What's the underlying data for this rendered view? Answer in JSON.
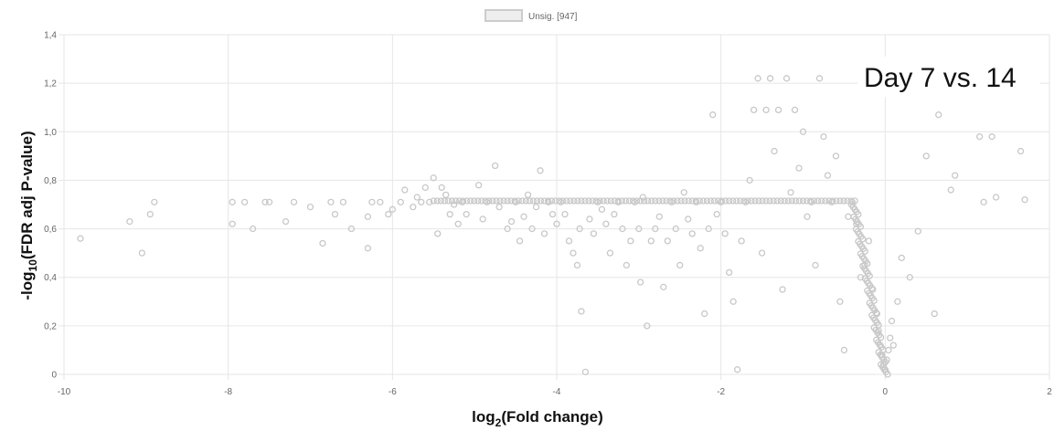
{
  "chart_data": {
    "type": "scatter",
    "legend": {
      "label": "Unsig. [947]",
      "position": "top-center"
    },
    "annotation": "Day 7 vs. 14",
    "xlabel": {
      "base": "log",
      "sub": "2",
      "rest": "(Fold change)"
    },
    "ylabel": {
      "pre": "-log",
      "sub": "10",
      "rest": "(FDR adj P-value)"
    },
    "xlim": [
      -10,
      2
    ],
    "ylim": [
      0,
      1.4
    ],
    "x_ticks": [
      "-10",
      "-8",
      "-6",
      "-4",
      "-2",
      "0",
      "2"
    ],
    "y_ticks": [
      "0",
      "0,2",
      "0,4",
      "0,6",
      "0,8",
      "1,0",
      "1,2",
      "1,4"
    ],
    "grid": true,
    "series": [
      {
        "name": "Unsig. [947]",
        "points": [
          [
            -9.8,
            0.56
          ],
          [
            -9.2,
            0.63
          ],
          [
            -9.05,
            0.5
          ],
          [
            -8.95,
            0.66
          ],
          [
            -8.9,
            0.71
          ],
          [
            -7.95,
            0.62
          ],
          [
            -7.95,
            0.71
          ],
          [
            -7.8,
            0.71
          ],
          [
            -7.7,
            0.6
          ],
          [
            -7.55,
            0.71
          ],
          [
            -7.5,
            0.71
          ],
          [
            -7.3,
            0.63
          ],
          [
            -7.2,
            0.71
          ],
          [
            -7.0,
            0.69
          ],
          [
            -6.85,
            0.54
          ],
          [
            -6.75,
            0.71
          ],
          [
            -6.7,
            0.66
          ],
          [
            -6.6,
            0.71
          ],
          [
            -6.5,
            0.6
          ],
          [
            -6.3,
            0.52
          ],
          [
            -6.3,
            0.65
          ],
          [
            -6.25,
            0.71
          ],
          [
            -6.15,
            0.71
          ],
          [
            -6.05,
            0.66
          ],
          [
            -6.0,
            0.68
          ],
          [
            -5.9,
            0.71
          ],
          [
            -5.85,
            0.76
          ],
          [
            -5.75,
            0.69
          ],
          [
            -5.7,
            0.73
          ],
          [
            -5.65,
            0.71
          ],
          [
            -5.6,
            0.77
          ],
          [
            -5.55,
            0.71
          ],
          [
            -5.5,
            0.81
          ],
          [
            -5.45,
            0.58
          ],
          [
            -5.4,
            0.77
          ],
          [
            -5.35,
            0.74
          ],
          [
            -5.3,
            0.66
          ],
          [
            -5.25,
            0.7
          ],
          [
            -5.2,
            0.62
          ],
          [
            -5.15,
            0.71
          ],
          [
            -5.1,
            0.66
          ],
          [
            -4.95,
            0.78
          ],
          [
            -4.9,
            0.64
          ],
          [
            -4.85,
            0.71
          ],
          [
            -4.75,
            0.86
          ],
          [
            -4.7,
            0.69
          ],
          [
            -4.6,
            0.6
          ],
          [
            -4.55,
            0.63
          ],
          [
            -4.5,
            0.71
          ],
          [
            -4.45,
            0.55
          ],
          [
            -4.4,
            0.65
          ],
          [
            -4.35,
            0.74
          ],
          [
            -4.3,
            0.6
          ],
          [
            -4.25,
            0.69
          ],
          [
            -4.2,
            0.84
          ],
          [
            -4.15,
            0.58
          ],
          [
            -4.1,
            0.71
          ],
          [
            -4.05,
            0.66
          ],
          [
            -4.0,
            0.62
          ],
          [
            -3.95,
            0.71
          ],
          [
            -3.9,
            0.66
          ],
          [
            -3.85,
            0.55
          ],
          [
            -3.8,
            0.5
          ],
          [
            -3.75,
            0.45
          ],
          [
            -3.72,
            0.6
          ],
          [
            -3.7,
            0.26
          ],
          [
            -3.65,
            0.01
          ],
          [
            -3.6,
            0.64
          ],
          [
            -3.55,
            0.58
          ],
          [
            -3.5,
            0.71
          ],
          [
            -3.45,
            0.68
          ],
          [
            -3.4,
            0.62
          ],
          [
            -3.35,
            0.5
          ],
          [
            -3.3,
            0.66
          ],
          [
            -3.25,
            0.71
          ],
          [
            -3.2,
            0.6
          ],
          [
            -3.15,
            0.45
          ],
          [
            -3.1,
            0.55
          ],
          [
            -3.05,
            0.71
          ],
          [
            -3.0,
            0.6
          ],
          [
            -2.98,
            0.38
          ],
          [
            -2.95,
            0.73
          ],
          [
            -2.9,
            0.2
          ],
          [
            -2.85,
            0.55
          ],
          [
            -2.8,
            0.6
          ],
          [
            -2.75,
            0.65
          ],
          [
            -2.7,
            0.36
          ],
          [
            -2.65,
            0.55
          ],
          [
            -2.6,
            0.71
          ],
          [
            -2.55,
            0.6
          ],
          [
            -2.5,
            0.45
          ],
          [
            -2.45,
            0.75
          ],
          [
            -2.4,
            0.64
          ],
          [
            -2.35,
            0.58
          ],
          [
            -2.3,
            0.71
          ],
          [
            -2.25,
            0.52
          ],
          [
            -2.2,
            0.25
          ],
          [
            -2.15,
            0.6
          ],
          [
            -2.1,
            1.07
          ],
          [
            -2.05,
            0.66
          ],
          [
            -2.0,
            0.71
          ],
          [
            -1.95,
            0.58
          ],
          [
            -1.9,
            0.42
          ],
          [
            -1.85,
            0.3
          ],
          [
            -1.8,
            0.02
          ],
          [
            -1.75,
            0.55
          ],
          [
            -1.7,
            0.71
          ],
          [
            -1.65,
            0.8
          ],
          [
            -1.6,
            1.09
          ],
          [
            -1.55,
            1.22
          ],
          [
            -1.5,
            0.5
          ],
          [
            -1.45,
            1.09
          ],
          [
            -1.4,
            1.22
          ],
          [
            -1.35,
            0.92
          ],
          [
            -1.3,
            1.09
          ],
          [
            -1.25,
            0.35
          ],
          [
            -1.2,
            1.22
          ],
          [
            -1.15,
            0.75
          ],
          [
            -1.1,
            1.09
          ],
          [
            -1.05,
            0.85
          ],
          [
            -1.0,
            1.0
          ],
          [
            -0.95,
            0.65
          ],
          [
            -0.9,
            0.71
          ],
          [
            -0.85,
            0.45
          ],
          [
            -0.8,
            1.22
          ],
          [
            -0.75,
            0.98
          ],
          [
            -0.7,
            0.82
          ],
          [
            -0.65,
            0.71
          ],
          [
            -0.6,
            0.9
          ],
          [
            -0.55,
            0.3
          ],
          [
            -0.5,
            0.1
          ],
          [
            -0.45,
            0.65
          ],
          [
            -0.4,
            0.71
          ],
          [
            -0.35,
            0.62
          ],
          [
            -0.3,
            0.4
          ],
          [
            -0.25,
            0.45
          ],
          [
            -0.2,
            0.55
          ],
          [
            -0.15,
            0.35
          ],
          [
            -0.1,
            0.25
          ],
          [
            -0.08,
            0.18
          ],
          [
            -0.06,
            0.12
          ],
          [
            -0.04,
            0.08
          ],
          [
            -0.02,
            0.04
          ],
          [
            0.0,
            0.02
          ],
          [
            0.02,
            0.06
          ],
          [
            0.04,
            0.1
          ],
          [
            0.06,
            0.15
          ],
          [
            0.08,
            0.22
          ],
          [
            0.1,
            0.12
          ],
          [
            0.15,
            0.3
          ],
          [
            0.2,
            0.48
          ],
          [
            0.3,
            0.4
          ],
          [
            0.4,
            0.59
          ],
          [
            0.5,
            0.9
          ],
          [
            0.6,
            0.25
          ],
          [
            0.65,
            1.07
          ],
          [
            0.8,
            0.76
          ],
          [
            0.85,
            0.82
          ],
          [
            1.15,
            0.98
          ],
          [
            1.2,
            0.71
          ],
          [
            1.3,
            0.98
          ],
          [
            1.35,
            0.73
          ],
          [
            1.65,
            0.92
          ],
          [
            1.7,
            0.72
          ]
        ]
      }
    ]
  }
}
